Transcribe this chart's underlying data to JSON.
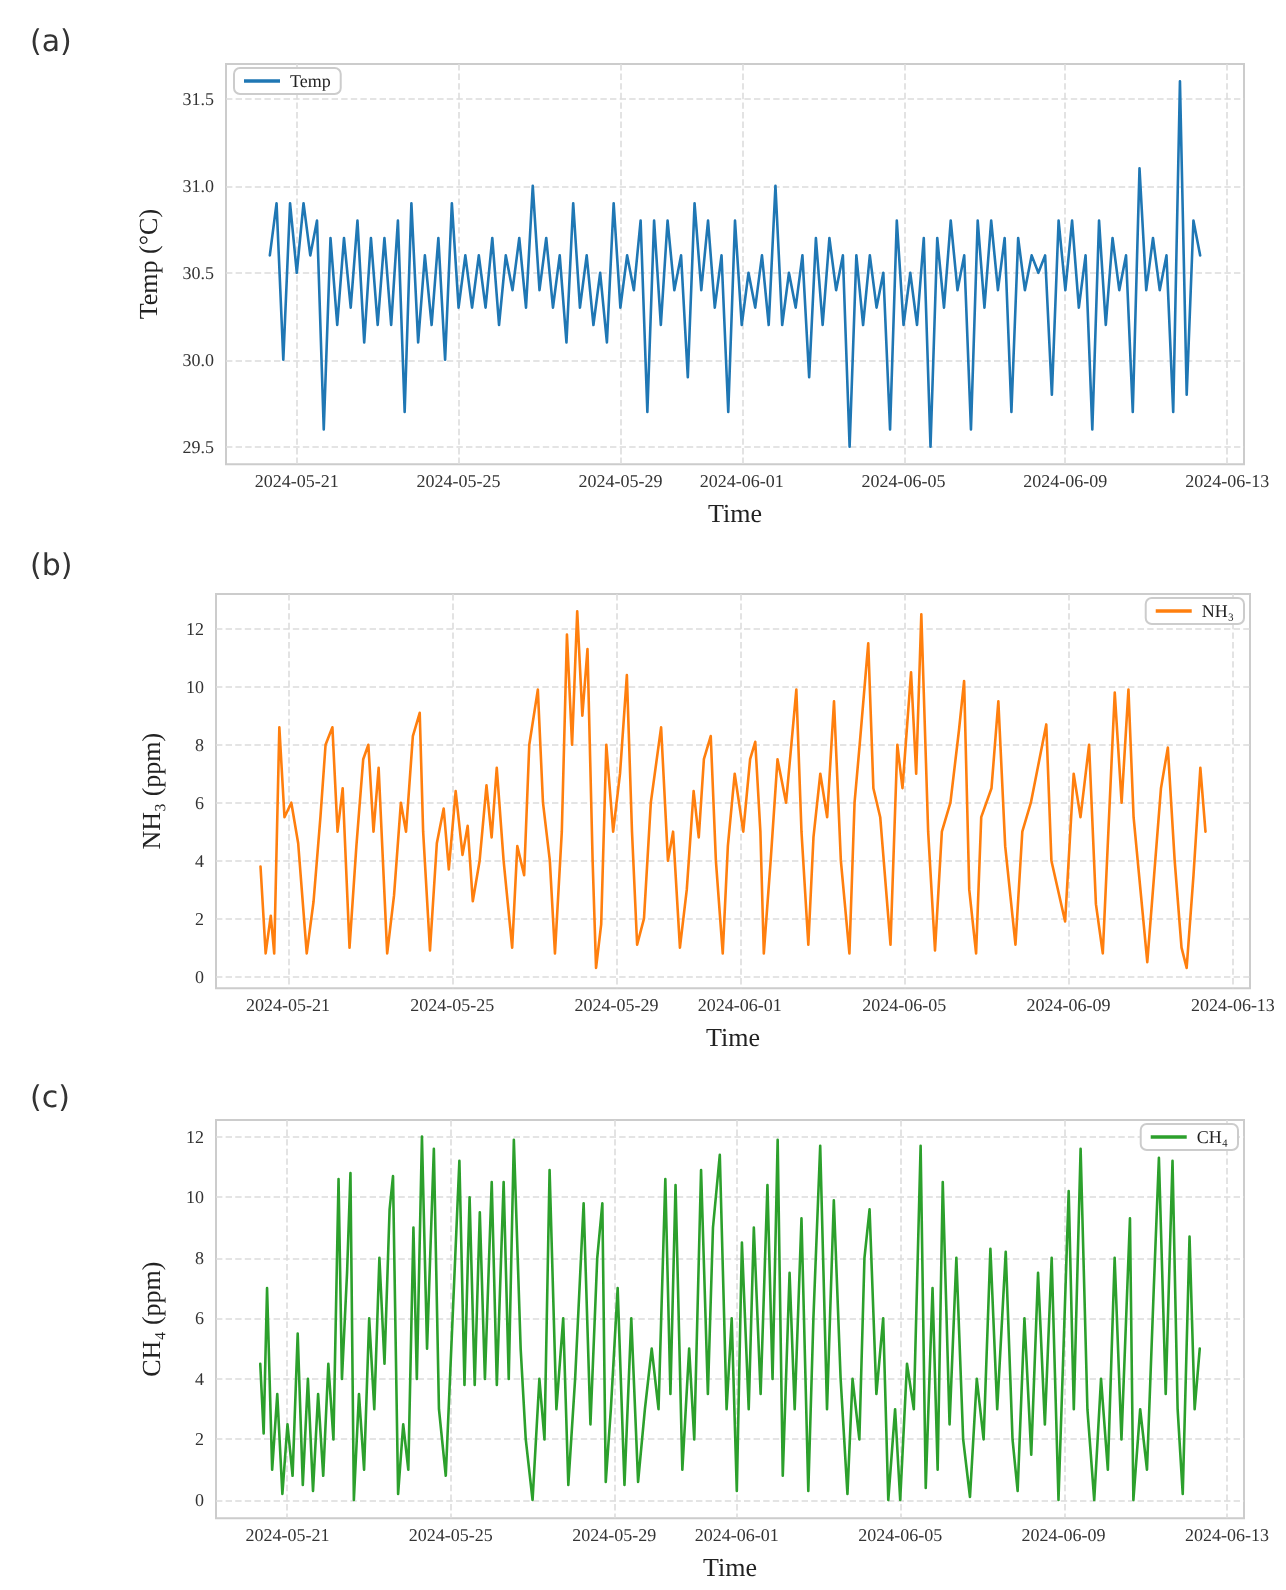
{
  "chart_data": [
    {
      "type": "line",
      "title": "(a)",
      "xlabel": "Time",
      "ylabel": "Temp (°C)",
      "x": [
        "2024-05-20T08:00",
        "2024-05-20T12:00",
        "2024-05-20T16:00",
        "2024-05-20T20:00",
        "2024-05-21T00:00",
        "2024-05-21T04:00",
        "2024-05-21T08:00",
        "2024-05-21T12:00",
        "2024-05-21T16:00",
        "2024-05-21T20:00",
        "2024-05-22T00:00",
        "2024-05-22T04:00",
        "2024-05-22T08:00",
        "2024-05-22T12:00",
        "2024-05-22T16:00",
        "2024-05-22T20:00",
        "2024-05-23T00:00",
        "2024-05-23T04:00",
        "2024-05-23T08:00",
        "2024-05-23T12:00",
        "2024-05-23T16:00",
        "2024-05-23T20:00",
        "2024-05-24T00:00",
        "2024-05-24T04:00",
        "2024-05-24T08:00",
        "2024-05-24T12:00",
        "2024-05-24T16:00",
        "2024-05-24T20:00",
        "2024-05-25T00:00",
        "2024-05-25T04:00",
        "2024-05-25T08:00",
        "2024-05-25T12:00",
        "2024-05-25T16:00",
        "2024-05-25T20:00",
        "2024-05-26T00:00",
        "2024-05-26T04:00",
        "2024-05-26T08:00",
        "2024-05-26T12:00",
        "2024-05-26T16:00",
        "2024-05-26T20:00",
        "2024-05-27T00:00",
        "2024-05-27T04:00",
        "2024-05-27T08:00",
        "2024-05-27T12:00",
        "2024-05-27T16:00",
        "2024-05-27T20:00",
        "2024-05-28T00:00",
        "2024-05-28T04:00",
        "2024-05-28T08:00",
        "2024-05-28T12:00",
        "2024-05-28T16:00",
        "2024-05-28T20:00",
        "2024-05-29T00:00",
        "2024-05-29T04:00",
        "2024-05-29T08:00",
        "2024-05-29T12:00",
        "2024-05-29T16:00",
        "2024-05-29T20:00",
        "2024-05-30T00:00",
        "2024-05-30T04:00",
        "2024-05-30T08:00",
        "2024-05-30T12:00",
        "2024-05-30T16:00",
        "2024-05-30T20:00",
        "2024-05-31T00:00",
        "2024-05-31T04:00",
        "2024-05-31T08:00",
        "2024-05-31T12:00",
        "2024-05-31T16:00",
        "2024-05-31T20:00",
        "2024-06-01T00:00",
        "2024-06-01T04:00",
        "2024-06-01T08:00",
        "2024-06-01T12:00",
        "2024-06-01T16:00",
        "2024-06-01T20:00",
        "2024-06-02T00:00",
        "2024-06-02T04:00",
        "2024-06-02T08:00",
        "2024-06-02T12:00",
        "2024-06-02T16:00",
        "2024-06-02T20:00",
        "2024-06-03T00:00",
        "2024-06-03T04:00",
        "2024-06-03T08:00",
        "2024-06-03T12:00",
        "2024-06-03T16:00",
        "2024-06-03T20:00",
        "2024-06-04T00:00",
        "2024-06-04T04:00",
        "2024-06-04T08:00",
        "2024-06-04T12:00",
        "2024-06-04T16:00",
        "2024-06-04T20:00",
        "2024-06-05T00:00",
        "2024-06-05T04:00",
        "2024-06-05T08:00",
        "2024-06-05T12:00",
        "2024-06-05T16:00",
        "2024-06-05T20:00",
        "2024-06-06T00:00",
        "2024-06-06T04:00",
        "2024-06-06T08:00",
        "2024-06-06T12:00",
        "2024-06-06T16:00",
        "2024-06-06T20:00",
        "2024-06-07T00:00",
        "2024-06-07T04:00",
        "2024-06-07T08:00",
        "2024-06-07T12:00",
        "2024-06-07T16:00",
        "2024-06-07T20:00",
        "2024-06-08T00:00",
        "2024-06-08T04:00",
        "2024-06-08T08:00",
        "2024-06-08T12:00",
        "2024-06-08T16:00",
        "2024-06-08T20:00",
        "2024-06-09T00:00",
        "2024-06-09T04:00",
        "2024-06-09T08:00",
        "2024-06-09T12:00",
        "2024-06-09T16:00",
        "2024-06-09T20:00",
        "2024-06-10T00:00",
        "2024-06-10T04:00",
        "2024-06-10T08:00",
        "2024-06-10T12:00",
        "2024-06-10T16:00",
        "2024-06-10T20:00",
        "2024-06-11T00:00",
        "2024-06-11T04:00",
        "2024-06-11T08:00",
        "2024-06-11T12:00",
        "2024-06-11T16:00",
        "2024-06-11T20:00",
        "2024-06-12T00:00",
        "2024-06-12T04:00",
        "2024-06-12T08:00"
      ],
      "series": [
        {
          "name": "Temp",
          "color": "#1f77b4",
          "values": [
            30.6,
            30.9,
            30.0,
            30.9,
            30.5,
            30.9,
            30.6,
            30.8,
            29.6,
            30.7,
            30.2,
            30.7,
            30.3,
            30.8,
            30.1,
            30.7,
            30.2,
            30.7,
            30.2,
            30.8,
            29.7,
            30.9,
            30.1,
            30.6,
            30.2,
            30.7,
            30.0,
            30.9,
            30.3,
            30.6,
            30.3,
            30.6,
            30.3,
            30.7,
            30.2,
            30.6,
            30.4,
            30.7,
            30.3,
            31.0,
            30.4,
            30.7,
            30.3,
            30.6,
            30.1,
            30.9,
            30.3,
            30.6,
            30.2,
            30.5,
            30.1,
            30.9,
            30.3,
            30.6,
            30.4,
            30.8,
            29.7,
            30.8,
            30.2,
            30.8,
            30.4,
            30.6,
            29.9,
            30.9,
            30.4,
            30.8,
            30.3,
            30.6,
            29.7,
            30.8,
            30.2,
            30.5,
            30.3,
            30.6,
            30.2,
            31.0,
            30.2,
            30.5,
            30.3,
            30.6,
            29.9,
            30.7,
            30.2,
            30.7,
            30.4,
            30.6,
            29.5,
            30.6,
            30.2,
            30.6,
            30.3,
            30.5,
            29.6,
            30.8,
            30.2,
            30.5,
            30.2,
            30.7,
            29.5,
            30.7,
            30.3,
            30.8,
            30.4,
            30.6,
            29.6,
            30.8,
            30.3,
            30.8,
            30.4,
            30.7,
            29.7,
            30.7,
            30.4,
            30.6,
            30.5,
            30.6,
            29.8,
            30.8,
            30.4,
            30.8,
            30.3,
            30.6,
            29.6,
            30.8,
            30.2,
            30.7,
            30.4,
            30.6,
            29.7,
            31.1,
            30.4,
            30.7,
            30.4,
            30.6,
            29.7,
            31.6,
            29.8,
            30.8,
            30.6
          ]
        }
      ],
      "xlim": [
        "2024-05-19T06:00",
        "2024-06-13T10:00"
      ],
      "ylim": [
        29.4,
        31.7
      ],
      "xticks": [
        "2024-05-21",
        "2024-05-25",
        "2024-05-29",
        "2024-06-01",
        "2024-06-05",
        "2024-06-09",
        "2024-06-13"
      ],
      "yticks": [
        29.5,
        {
          "value": 30,
          "label": "30.0"
        },
        30.5,
        {
          "value": 31,
          "label": "31.0"
        },
        31.5
      ],
      "grid": true,
      "legend": "top left"
    },
    {
      "type": "line",
      "title": "(b)",
      "xlabel": "Time",
      "ylabel": "NH₃ (ppm)",
      "x": [
        "2024-05-20T08:00",
        "2024-05-20T11:00",
        "2024-05-20T14:00",
        "2024-05-20T16:00",
        "2024-05-20T19:00",
        "2024-05-20T22:00",
        "2024-05-21T02:00",
        "2024-05-21T06:00",
        "2024-05-21T11:00",
        "2024-05-21T15:00",
        "2024-05-21T19:00",
        "2024-05-21T22:00",
        "2024-05-22T02:00",
        "2024-05-22T05:00",
        "2024-05-22T08:00",
        "2024-05-22T12:00",
        "2024-05-22T16:00",
        "2024-05-22T20:00",
        "2024-05-22T23:00",
        "2024-05-23T02:00",
        "2024-05-23T05:00",
        "2024-05-23T10:00",
        "2024-05-23T14:00",
        "2024-05-23T18:00",
        "2024-05-23T21:00",
        "2024-05-24T01:00",
        "2024-05-24T05:00",
        "2024-05-24T07:00",
        "2024-05-24T11:00",
        "2024-05-24T15:00",
        "2024-05-24T19:00",
        "2024-05-24T22:00",
        "2024-05-25T02:00",
        "2024-05-25T06:00",
        "2024-05-25T09:00",
        "2024-05-25T12:00",
        "2024-05-25T16:00",
        "2024-05-25T20:00",
        "2024-05-25T23:00",
        "2024-05-26T02:00",
        "2024-05-26T06:00",
        "2024-05-26T11:00",
        "2024-05-26T14:00",
        "2024-05-26T18:00",
        "2024-05-26T21:00",
        "2024-05-27T02:00",
        "2024-05-27T05:00",
        "2024-05-27T09:00",
        "2024-05-27T12:00",
        "2024-05-27T16:00",
        "2024-05-27T19:00",
        "2024-05-27T22:00",
        "2024-05-28T01:00",
        "2024-05-28T04:00",
        "2024-05-28T07:00",
        "2024-05-28T10:00",
        "2024-05-28T12:00",
        "2024-05-28T15:00",
        "2024-05-28T18:00",
        "2024-05-28T22:00",
        "2024-05-29T02:00",
        "2024-05-29T06:00",
        "2024-05-29T09:00",
        "2024-05-29T12:00",
        "2024-05-29T16:00",
        "2024-05-29T20:00",
        "2024-05-30T02:00",
        "2024-05-30T06:00",
        "2024-05-30T09:00",
        "2024-05-30T13:00",
        "2024-05-30T17:00",
        "2024-05-30T21:00",
        "2024-05-31T00:00",
        "2024-05-31T03:00",
        "2024-05-31T07:00",
        "2024-05-31T10:00",
        "2024-05-31T14:00",
        "2024-05-31T17:00",
        "2024-05-31T21:00",
        "2024-06-01T02:00",
        "2024-06-01T06:00",
        "2024-06-01T09:00",
        "2024-06-01T12:00",
        "2024-06-01T14:00",
        "2024-06-01T18:00",
        "2024-06-01T22:00",
        "2024-06-02T03:00",
        "2024-06-02T09:00",
        "2024-06-02T12:00",
        "2024-06-02T16:00",
        "2024-06-02T19:00",
        "2024-06-02T23:00",
        "2024-06-03T03:00",
        "2024-06-03T07:00",
        "2024-06-03T11:00",
        "2024-06-03T16:00",
        "2024-06-03T19:00",
        "2024-06-03T22:00",
        "2024-06-04T03:00",
        "2024-06-04T06:00",
        "2024-06-04T10:00",
        "2024-06-04T16:00",
        "2024-06-04T20:00",
        "2024-06-04T23:00",
        "2024-06-05T04:00",
        "2024-06-05T07:00",
        "2024-06-05T10:00",
        "2024-06-05T14:00",
        "2024-06-05T18:00",
        "2024-06-05T22:00",
        "2024-06-06T03:00",
        "2024-06-06T08:00",
        "2024-06-06T11:00",
        "2024-06-06T14:00",
        "2024-06-06T18:00",
        "2024-06-06T21:00",
        "2024-06-07T03:00",
        "2024-06-07T07:00",
        "2024-06-07T11:00",
        "2024-06-07T17:00",
        "2024-06-07T21:00",
        "2024-06-08T02:00",
        "2024-06-08T07:00",
        "2024-06-08T11:00",
        "2024-06-08T14:00",
        "2024-06-08T22:00",
        "2024-06-09T03:00",
        "2024-06-09T07:00",
        "2024-06-09T12:00",
        "2024-06-09T16:00",
        "2024-06-09T20:00",
        "2024-06-10T03:00",
        "2024-06-10T07:00",
        "2024-06-10T11:00",
        "2024-06-10T14:00",
        "2024-06-10T18:00",
        "2024-06-10T22:00",
        "2024-06-11T02:00",
        "2024-06-11T06:00",
        "2024-06-11T10:00",
        "2024-06-11T14:00",
        "2024-06-11T18:00",
        "2024-06-11T21:00",
        "2024-06-12T01:00",
        "2024-06-12T05:00",
        "2024-06-12T08:00"
      ],
      "series": [
        {
          "name": "NH₃",
          "color": "#ff7f0e",
          "values": [
            3.8,
            0.8,
            2.1,
            0.8,
            8.6,
            5.5,
            6.0,
            4.6,
            0.8,
            2.6,
            5.5,
            8.0,
            8.6,
            5.0,
            6.5,
            1.0,
            4.5,
            7.5,
            8.0,
            5.0,
            7.2,
            0.8,
            2.8,
            6.0,
            5.0,
            8.3,
            9.1,
            5.0,
            0.9,
            4.6,
            5.8,
            3.7,
            6.4,
            4.2,
            5.2,
            2.6,
            4.0,
            6.6,
            4.8,
            7.2,
            4.0,
            1.0,
            4.5,
            3.5,
            8.0,
            9.9,
            6.0,
            4.0,
            0.8,
            5.0,
            11.8,
            8.0,
            12.6,
            9.0,
            11.3,
            4.0,
            0.3,
            1.8,
            8.0,
            5.0,
            7.0,
            10.4,
            5.0,
            1.1,
            2.0,
            6.0,
            8.6,
            4.0,
            5.0,
            1.0,
            3.0,
            6.4,
            4.8,
            7.5,
            8.3,
            4.0,
            0.8,
            4.5,
            7.0,
            5.0,
            7.5,
            8.1,
            5.0,
            0.8,
            4.0,
            7.5,
            6.0,
            9.9,
            5.0,
            1.1,
            4.8,
            7.0,
            5.5,
            9.5,
            4.0,
            0.8,
            6.0,
            8.0,
            11.5,
            6.5,
            5.5,
            1.1,
            8.0,
            6.5,
            10.5,
            7.0,
            12.5,
            5.0,
            0.9,
            5.0,
            6.0,
            8.5,
            10.2,
            3.0,
            0.8,
            5.5,
            6.5,
            9.5,
            4.5,
            1.1,
            5.0,
            6.0,
            7.5,
            8.7,
            4.0,
            1.9,
            7.0,
            5.5,
            8.0,
            2.5,
            0.8,
            9.8,
            6.0,
            9.9,
            5.5,
            3.0,
            0.5,
            3.5,
            6.5,
            7.9,
            4.0,
            1.0,
            0.3,
            3.5,
            7.2,
            5.0
          ]
        }
      ],
      "xlim": [
        "2024-05-19T06:00",
        "2024-06-13T10:00"
      ],
      "ylim": [
        -0.4,
        13.2
      ],
      "xticks": [
        "2024-05-21",
        "2024-05-25",
        "2024-05-29",
        "2024-06-01",
        "2024-06-05",
        "2024-06-09",
        "2024-06-13"
      ],
      "yticks": [
        0,
        2,
        4,
        6,
        8,
        10,
        12
      ],
      "grid": true,
      "legend": "top right"
    },
    {
      "type": "line",
      "title": "(c)",
      "xlabel": "Time",
      "ylabel": "CH₄ (ppm)",
      "x": [
        "2024-05-20T08:00",
        "2024-05-20T10:00",
        "2024-05-20T12:00",
        "2024-05-20T15:00",
        "2024-05-20T18:00",
        "2024-05-20T21:00",
        "2024-05-21T00:00",
        "2024-05-21T03:00",
        "2024-05-21T06:00",
        "2024-05-21T09:00",
        "2024-05-21T12:00",
        "2024-05-21T15:00",
        "2024-05-21T18:00",
        "2024-05-21T21:00",
        "2024-05-22T00:00",
        "2024-05-22T03:00",
        "2024-05-22T06:00",
        "2024-05-22T08:00",
        "2024-05-22T11:00",
        "2024-05-22T13:00",
        "2024-05-22T15:00",
        "2024-05-22T18:00",
        "2024-05-22T21:00",
        "2024-05-23T00:00",
        "2024-05-23T03:00",
        "2024-05-23T06:00",
        "2024-05-23T09:00",
        "2024-05-23T12:00",
        "2024-05-23T14:00",
        "2024-05-23T17:00",
        "2024-05-23T20:00",
        "2024-05-23T23:00",
        "2024-05-24T02:00",
        "2024-05-24T04:00",
        "2024-05-24T07:00",
        "2024-05-24T10:00",
        "2024-05-24T14:00",
        "2024-05-24T17:00",
        "2024-05-24T21:00",
        "2024-05-25T01:00",
        "2024-05-25T05:00",
        "2024-05-25T08:00",
        "2024-05-25T11:00",
        "2024-05-25T14:00",
        "2024-05-25T17:00",
        "2024-05-25T20:00",
        "2024-05-26T00:00",
        "2024-05-26T03:00",
        "2024-05-26T07:00",
        "2024-05-26T10:00",
        "2024-05-26T13:00",
        "2024-05-26T17:00",
        "2024-05-26T20:00",
        "2024-05-27T00:00",
        "2024-05-27T04:00",
        "2024-05-27T07:00",
        "2024-05-27T10:00",
        "2024-05-27T14:00",
        "2024-05-27T18:00",
        "2024-05-27T21:00",
        "2024-05-28T01:00",
        "2024-05-28T06:00",
        "2024-05-28T10:00",
        "2024-05-28T14:00",
        "2024-05-28T17:00",
        "2024-05-28T19:00",
        "2024-05-28T22:00",
        "2024-05-29T02:00",
        "2024-05-29T06:00",
        "2024-05-29T10:00",
        "2024-05-29T14:00",
        "2024-05-29T18:00",
        "2024-05-29T22:00",
        "2024-05-30T02:00",
        "2024-05-30T06:00",
        "2024-05-30T09:00",
        "2024-05-30T12:00",
        "2024-05-30T16:00",
        "2024-05-30T20:00",
        "2024-05-30T23:00",
        "2024-05-31T03:00",
        "2024-05-31T07:00",
        "2024-05-31T10:00",
        "2024-05-31T14:00",
        "2024-05-31T18:00",
        "2024-05-31T21:00",
        "2024-06-01T00:00",
        "2024-06-01T03:00",
        "2024-06-01T07:00",
        "2024-06-01T10:00",
        "2024-06-01T14:00",
        "2024-06-01T18:00",
        "2024-06-01T21:00",
        "2024-06-02T00:00",
        "2024-06-02T03:00",
        "2024-06-02T07:00",
        "2024-06-02T10:00",
        "2024-06-02T14:00",
        "2024-06-02T18:00",
        "2024-06-02T21:00",
        "2024-06-03T01:00",
        "2024-06-03T05:00",
        "2024-06-03T09:00",
        "2024-06-03T13:00",
        "2024-06-03T17:00",
        "2024-06-03T20:00",
        "2024-06-04T00:00",
        "2024-06-04T03:00",
        "2024-06-04T06:00",
        "2024-06-04T10:00",
        "2024-06-04T14:00",
        "2024-06-04T17:00",
        "2024-06-04T21:00",
        "2024-06-05T00:00",
        "2024-06-05T04:00",
        "2024-06-05T08:00",
        "2024-06-05T12:00",
        "2024-06-05T15:00",
        "2024-06-05T19:00",
        "2024-06-05T22:00",
        "2024-06-06T01:00",
        "2024-06-06T05:00",
        "2024-06-06T09:00",
        "2024-06-06T13:00",
        "2024-06-06T17:00",
        "2024-06-06T21:00",
        "2024-06-07T01:00",
        "2024-06-07T05:00",
        "2024-06-07T09:00",
        "2024-06-07T14:00",
        "2024-06-07T18:00",
        "2024-06-07T21:00",
        "2024-06-08T01:00",
        "2024-06-08T05:00",
        "2024-06-08T09:00",
        "2024-06-08T13:00",
        "2024-06-08T17:00",
        "2024-06-08T21:00",
        "2024-06-09T03:00",
        "2024-06-09T06:00",
        "2024-06-09T10:00",
        "2024-06-09T14:00",
        "2024-06-09T18:00",
        "2024-06-09T22:00",
        "2024-06-10T02:00",
        "2024-06-10T06:00",
        "2024-06-10T10:00",
        "2024-06-10T15:00",
        "2024-06-10T17:00",
        "2024-06-10T21:00",
        "2024-06-11T01:00",
        "2024-06-11T05:00",
        "2024-06-11T08:00",
        "2024-06-11T12:00",
        "2024-06-11T16:00",
        "2024-06-11T19:00",
        "2024-06-11T22:00",
        "2024-06-12T02:00",
        "2024-06-12T05:00",
        "2024-06-12T08:00"
      ],
      "series": [
        {
          "name": "CH₄",
          "color": "#2ca02c",
          "values": [
            4.5,
            2.2,
            7.0,
            1.0,
            3.5,
            0.2,
            2.5,
            0.8,
            5.5,
            0.5,
            4.0,
            0.3,
            3.5,
            0.8,
            4.5,
            2.0,
            10.6,
            4.0,
            7.5,
            10.8,
            0.0,
            3.5,
            1.0,
            6.0,
            3.0,
            8.0,
            4.5,
            9.6,
            10.7,
            0.2,
            2.5,
            1.0,
            9.0,
            4.0,
            12.0,
            5.0,
            11.6,
            3.0,
            0.8,
            6.0,
            11.2,
            3.8,
            10.0,
            3.8,
            9.5,
            4.0,
            10.5,
            3.8,
            10.5,
            4.0,
            11.9,
            5.0,
            2.0,
            0.0,
            4.0,
            2.0,
            10.9,
            3.0,
            6.0,
            0.5,
            4.0,
            9.8,
            2.5,
            8.0,
            9.8,
            0.6,
            3.0,
            7.0,
            0.5,
            6.0,
            0.6,
            3.0,
            5.0,
            3.0,
            10.6,
            3.5,
            10.4,
            1.0,
            5.0,
            2.0,
            10.9,
            3.5,
            9.0,
            11.4,
            3.0,
            6.0,
            0.3,
            8.5,
            3.0,
            9.0,
            3.5,
            10.4,
            4.0,
            11.9,
            0.8,
            7.5,
            3.0,
            9.3,
            0.3,
            6.0,
            11.7,
            3.0,
            9.9,
            4.0,
            0.2,
            4.0,
            2.0,
            8.0,
            9.6,
            3.5,
            6.0,
            0.0,
            3.0,
            0.0,
            4.5,
            3.0,
            11.7,
            0.4,
            7.0,
            1.0,
            10.5,
            2.5,
            8.0,
            2.0,
            0.1,
            4.0,
            2.0,
            8.3,
            3.0,
            8.2,
            2.0,
            0.3,
            6.0,
            1.5,
            7.5,
            2.5,
            8.0,
            0.0,
            10.2,
            3.0,
            11.6,
            3.0,
            0.0,
            4.0,
            1.0,
            8.0,
            2.0,
            9.3,
            0.0,
            3.0,
            1.0,
            7.0,
            11.3,
            3.5,
            11.2,
            3.0,
            0.2,
            8.7,
            3.0,
            5.0
          ]
        }
      ],
      "xlim": [
        "2024-05-19T06:00",
        "2024-06-13T10:00"
      ],
      "ylim": [
        -0.6,
        12.55
      ],
      "xticks": [
        "2024-05-21",
        "2024-05-25",
        "2024-05-29",
        "2024-06-01",
        "2024-06-05",
        "2024-06-09",
        "2024-06-13"
      ],
      "yticks": [
        0,
        2,
        4,
        6,
        8,
        10,
        12
      ],
      "grid": true,
      "legend": "top right"
    }
  ]
}
